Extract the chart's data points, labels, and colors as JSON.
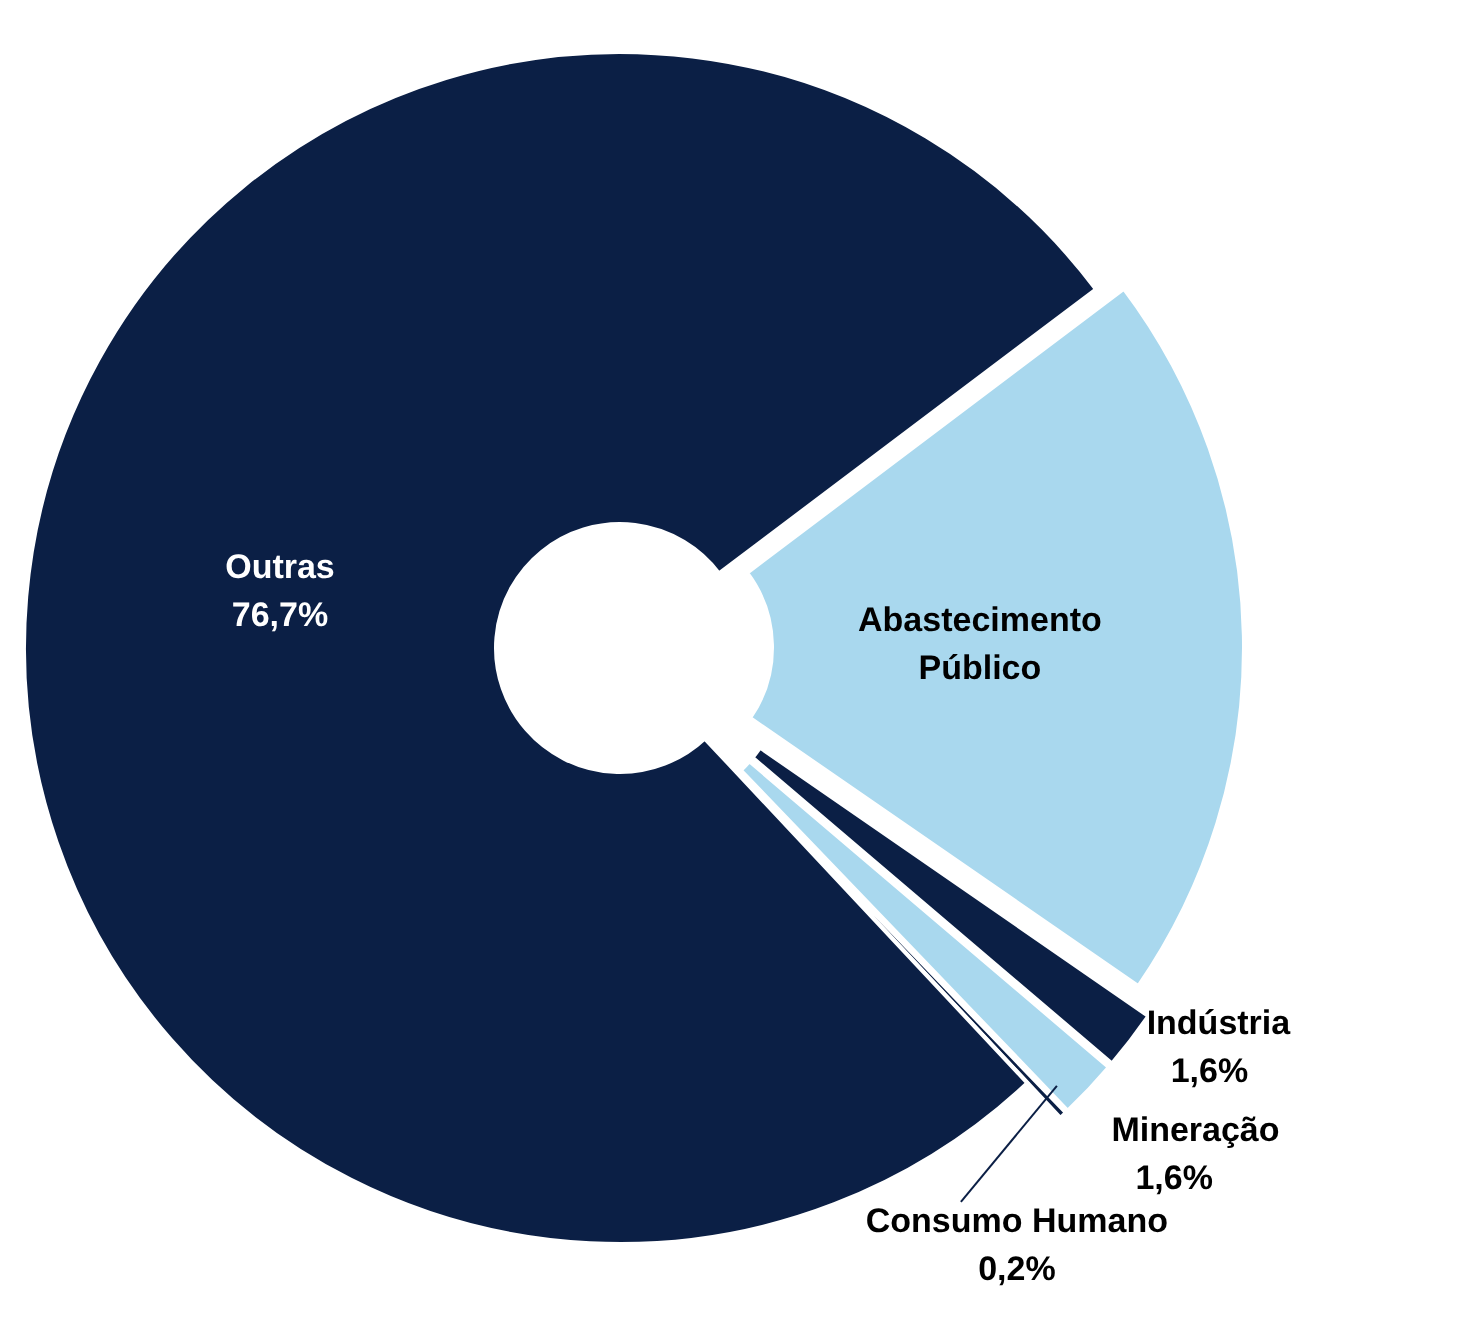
{
  "chart_data": {
    "type": "donut",
    "categories": [
      "Abastecimento Público",
      "Indústria",
      "Mineração",
      "Consumo Humano",
      "Outras"
    ],
    "values": [
      19.9,
      1.6,
      1.6,
      0.2,
      76.7
    ],
    "value_labels": [
      null,
      "1,6%",
      "1,6%",
      "0,2%",
      "76,7%"
    ],
    "colors": [
      "#a9d8ee",
      "#0b1f45",
      "#a9d8ee",
      "#0b1f45",
      "#0b1f45"
    ]
  }
}
